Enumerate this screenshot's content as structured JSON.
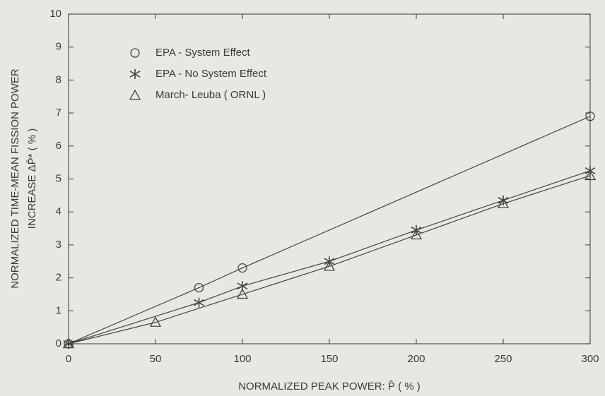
{
  "chart_data": {
    "type": "line",
    "xlabel": "NORMALIZED PEAK POWER: P̂ ( % )",
    "ylabel": [
      "NORMALIZED TIME-MEAN FISSION POWER",
      "INCREASE ΔP̄* ( % )"
    ],
    "xlim": [
      0,
      300
    ],
    "xticks": [
      0,
      50,
      100,
      150,
      200,
      250,
      300
    ],
    "ylim": [
      0,
      10
    ],
    "yticks": [
      0,
      1,
      2,
      3,
      4,
      5,
      6,
      7,
      8,
      9,
      10
    ],
    "series": [
      {
        "name": "EPA - System Effect",
        "marker": "circle",
        "color": "#444",
        "x": [
          0,
          75,
          100,
          300
        ],
        "values": [
          0,
          1.7,
          2.3,
          6.9
        ]
      },
      {
        "name": "EPA - No System Effect",
        "marker": "asterisk",
        "color": "#444",
        "x": [
          0,
          75,
          100,
          150,
          200,
          250,
          300
        ],
        "values": [
          0,
          1.25,
          1.75,
          2.5,
          3.45,
          4.35,
          5.25
        ]
      },
      {
        "name": "March- Leuba ( ORNL )",
        "marker": "triangle",
        "color": "#444",
        "x": [
          0,
          50,
          100,
          150,
          200,
          250,
          300
        ],
        "values": [
          0,
          0.65,
          1.5,
          2.35,
          3.3,
          4.25,
          5.1
        ]
      }
    ]
  }
}
